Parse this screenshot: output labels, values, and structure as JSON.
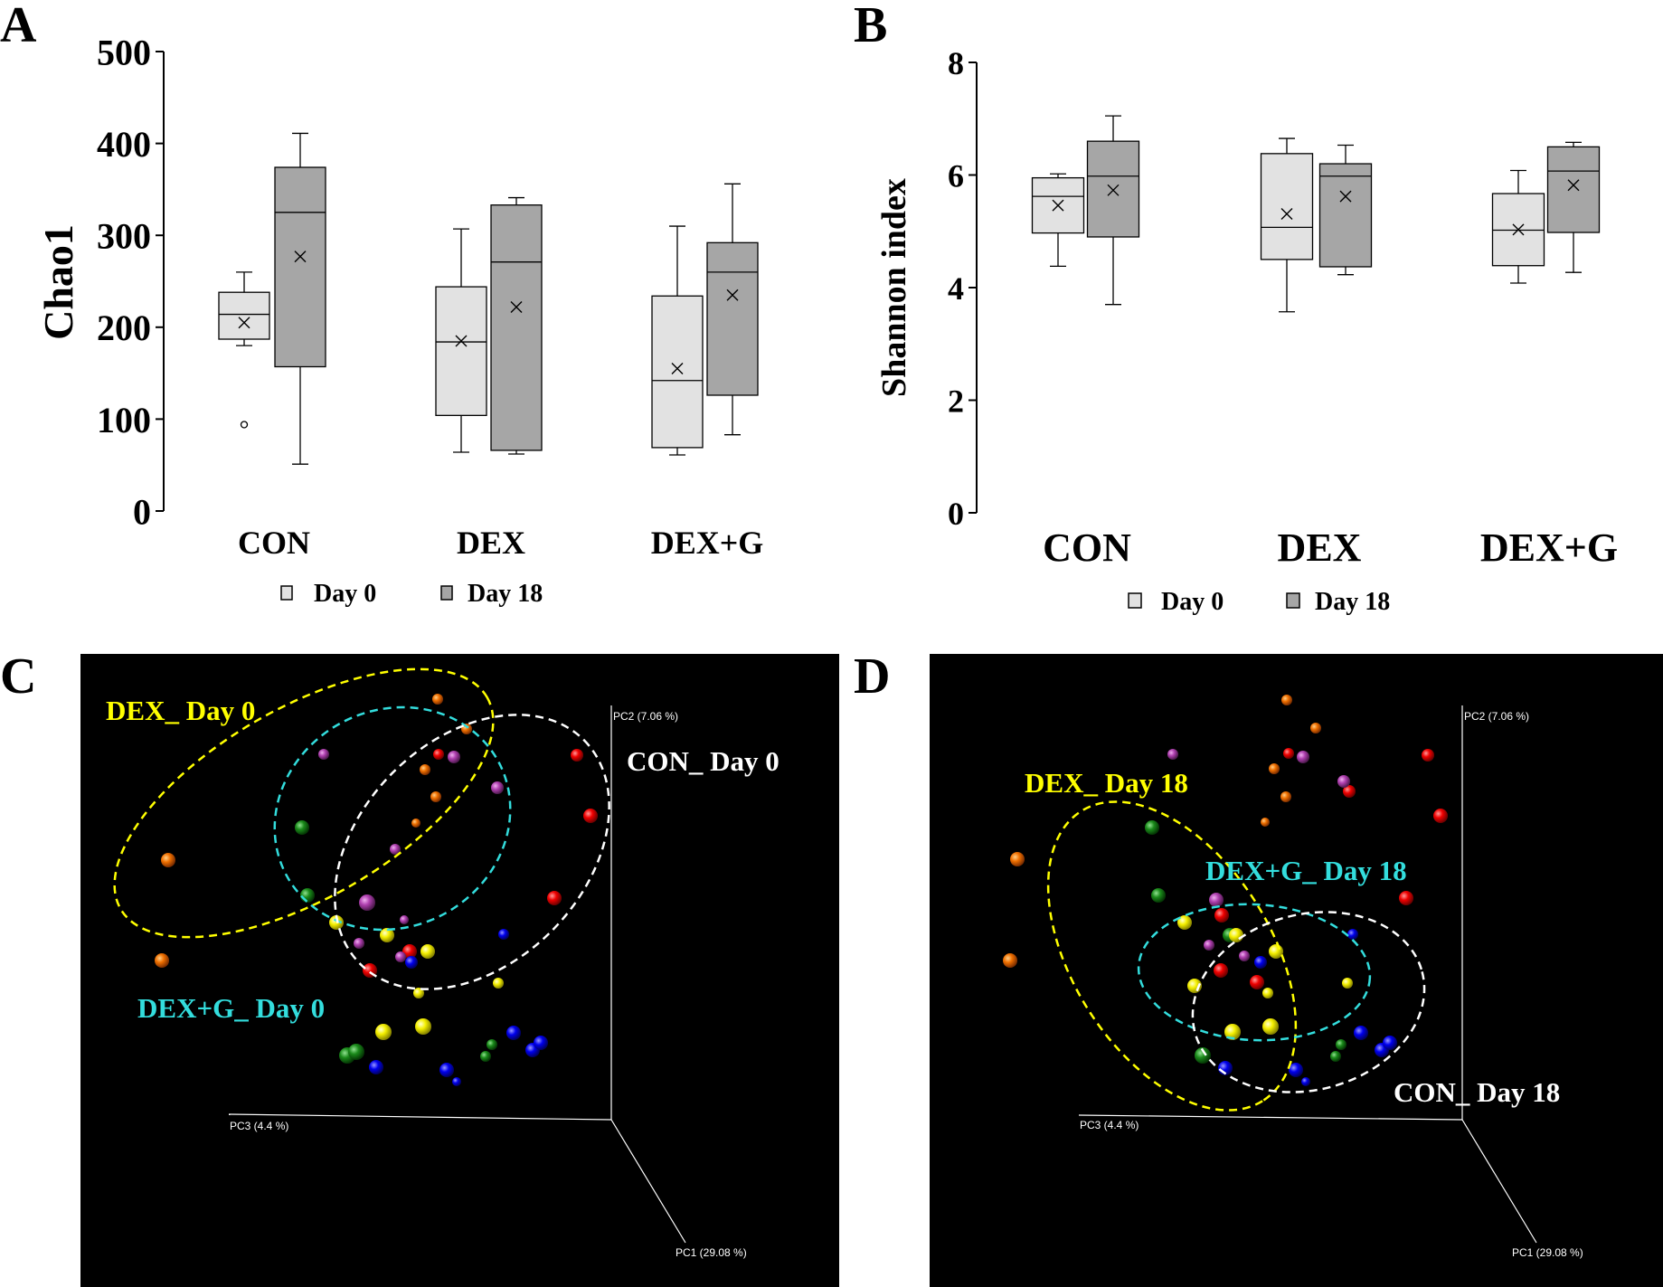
{
  "figure": {
    "panels": [
      "A",
      "B",
      "C",
      "D"
    ]
  },
  "colors": {
    "day0_fill": "#e2e2e2",
    "day18_fill": "#a6a6a6",
    "pcoa_bg": "#000000",
    "axis_white": "#ffffff",
    "yellow": "#ffff00",
    "cyan": "#33dddd",
    "white": "#ffffff"
  },
  "chart_data": [
    {
      "panel": "A",
      "type": "box",
      "title": "",
      "ylabel": "Chao1",
      "xlabel": "",
      "ylim": [
        0,
        500
      ],
      "yticks": [
        0,
        100,
        200,
        300,
        400,
        500
      ],
      "categories": [
        "CON",
        "DEX",
        "DEX+G"
      ],
      "legend": [
        "Day 0",
        "Day 18"
      ],
      "series": [
        {
          "name": "Day 0",
          "boxes": [
            {
              "min": 180,
              "q1": 187,
              "median": 214,
              "q3": 238,
              "max": 260,
              "mean": 205,
              "outliers": [
                94
              ]
            },
            {
              "min": 64,
              "q1": 104,
              "median": 184,
              "q3": 244,
              "max": 307,
              "mean": 185,
              "outliers": []
            },
            {
              "min": 61,
              "q1": 69,
              "median": 142,
              "q3": 234,
              "max": 310,
              "mean": 155,
              "outliers": []
            }
          ]
        },
        {
          "name": "Day 18",
          "boxes": [
            {
              "min": 51,
              "q1": 157,
              "median": 325,
              "q3": 374,
              "max": 411,
              "mean": 277,
              "outliers": []
            },
            {
              "min": 62,
              "q1": 66,
              "median": 271,
              "q3": 333,
              "max": 341,
              "mean": 222,
              "outliers": []
            },
            {
              "min": 83,
              "q1": 126,
              "median": 260,
              "q3": 292,
              "max": 356,
              "mean": 235,
              "outliers": []
            }
          ]
        }
      ]
    },
    {
      "panel": "B",
      "type": "box",
      "title": "",
      "ylabel": "Shannon index",
      "xlabel": "",
      "ylim": [
        0,
        8
      ],
      "yticks": [
        0,
        2,
        4,
        6,
        8
      ],
      "categories": [
        "CON",
        "DEX",
        "DEX+G"
      ],
      "legend": [
        "Day 0",
        "Day 18"
      ],
      "series": [
        {
          "name": "Day 0",
          "boxes": [
            {
              "min": 4.38,
              "q1": 4.97,
              "median": 5.62,
              "q3": 5.95,
              "max": 6.02,
              "mean": 5.46,
              "outliers": []
            },
            {
              "min": 3.57,
              "q1": 4.5,
              "median": 5.07,
              "q3": 6.38,
              "max": 6.65,
              "mean": 5.31,
              "outliers": []
            },
            {
              "min": 4.08,
              "q1": 4.39,
              "median": 5.02,
              "q3": 5.67,
              "max": 6.08,
              "mean": 5.03,
              "outliers": []
            }
          ]
        },
        {
          "name": "Day 18",
          "boxes": [
            {
              "min": 3.7,
              "q1": 4.9,
              "median": 5.98,
              "q3": 6.6,
              "max": 7.05,
              "mean": 5.73,
              "outliers": []
            },
            {
              "min": 4.23,
              "q1": 4.37,
              "median": 5.98,
              "q3": 6.2,
              "max": 6.53,
              "mean": 5.62,
              "outliers": []
            },
            {
              "min": 4.27,
              "q1": 4.98,
              "median": 6.07,
              "q3": 6.5,
              "max": 6.58,
              "mean": 5.82,
              "outliers": []
            }
          ]
        }
      ]
    },
    {
      "panel": "C",
      "type": "scatter",
      "title": "",
      "axis_labels": {
        "pc1": "PC1 (29.08 %)",
        "pc2": "PC2 (7.06 %)",
        "pc3": "PC3 (4.4 %)"
      },
      "groups": [
        {
          "name": "DEX_ Day 0",
          "color": "#ffff00"
        },
        {
          "name": "CON_ Day 0",
          "color": "#ffffff"
        },
        {
          "name": "DEX+G_ Day 0",
          "color": "#33dddd"
        }
      ]
    },
    {
      "panel": "D",
      "type": "scatter",
      "title": "",
      "axis_labels": {
        "pc1": "PC1 (29.08 %)",
        "pc2": "PC2 (7.06 %)",
        "pc3": "PC3 (4.4 %)"
      },
      "groups": [
        {
          "name": "DEX_ Day 18",
          "color": "#ffff00"
        },
        {
          "name": "DEX+G_ Day 18",
          "color": "#33dddd"
        },
        {
          "name": "CON_ Day 18",
          "color": "#ffffff"
        }
      ]
    }
  ]
}
